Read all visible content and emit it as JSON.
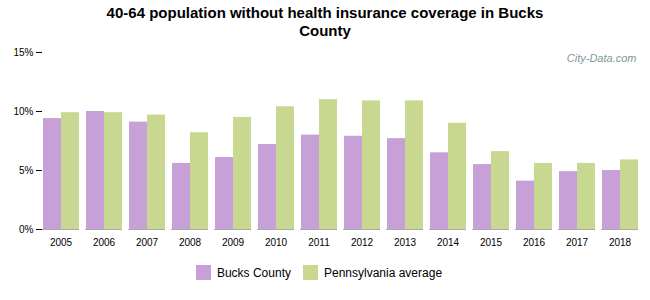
{
  "chart_data": {
    "type": "bar",
    "title": "40-64 population without health insurance coverage in Bucks\nCounty",
    "categories": [
      "2005",
      "2006",
      "2007",
      "2008",
      "2009",
      "2010",
      "2011",
      "2012",
      "2013",
      "2014",
      "2015",
      "2016",
      "2017",
      "2018"
    ],
    "series": [
      {
        "name": "Bucks County",
        "color": "#c8a0d8",
        "values": [
          9.4,
          10.0,
          9.1,
          5.6,
          6.1,
          7.2,
          8.0,
          7.9,
          7.7,
          6.5,
          5.5,
          4.1,
          4.9,
          5.0
        ]
      },
      {
        "name": "Pennsylvania average",
        "color": "#c8d890",
        "values": [
          9.9,
          9.9,
          9.7,
          8.2,
          9.5,
          10.4,
          11.0,
          10.9,
          10.9,
          9.0,
          6.6,
          5.6,
          5.6,
          5.9
        ]
      }
    ],
    "ylim": [
      0,
      15
    ],
    "yticks": [
      {
        "value": 0,
        "label": "0%"
      },
      {
        "value": 5,
        "label": "5%"
      },
      {
        "value": 10,
        "label": "10%"
      },
      {
        "value": 15,
        "label": "15%"
      }
    ],
    "grid": false,
    "legend": "bottom",
    "annotations": [
      "City-Data.com"
    ]
  }
}
